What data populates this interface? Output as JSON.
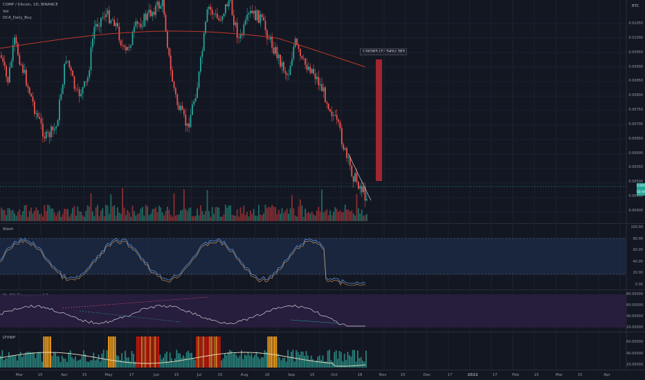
{
  "header": {
    "symbol_line": "COMP / Bitcoin, 1D, BINANCE",
    "volume_label": "Vol",
    "indicator_label": "DCA_Daily_Buy",
    "currency": "BTC"
  },
  "main_price_axis": {
    "ticks": [
      "0.01050",
      "0.01000",
      "0.00950",
      "0.00900",
      "0.00850",
      "0.00800",
      "0.00750",
      "0.00700",
      "0.00650",
      "0.00600",
      "0.00550",
      "0.00500",
      "0.00450",
      "0.00400"
    ],
    "last_price": "0.00528",
    "countdown": "02:49:20"
  },
  "measure_box": {
    "label": "0.00383 (72.54%) 383",
    "color": "#b22833"
  },
  "stoch": {
    "title": "Stoch",
    "ticks": [
      "100.00",
      "80.00",
      "60.00",
      "40.00",
      "20.00",
      "0.00"
    ],
    "upper_band": 80,
    "lower_band": 20
  },
  "rsi": {
    "title": "My RSI Divergence v4.3",
    "ticks": [
      "80.00000",
      "60.00000",
      "40.00000",
      "20.00000"
    ]
  },
  "vwap_osc": {
    "title": "LTVWP",
    "ticks": [
      "60.00000",
      "40.00000",
      "20.00000"
    ]
  },
  "time_axis": [
    "Mar",
    "15",
    "Apr",
    "15",
    "May",
    "17",
    "Jun",
    "15",
    "Jul",
    "15",
    "Aug",
    "16",
    "Sep",
    "15",
    "Oct",
    "18",
    "Nov",
    "15",
    "Dec",
    "17",
    "2022",
    "17",
    "Feb",
    "15",
    "Mar",
    "15",
    "Apr"
  ],
  "colors": {
    "up": "#26a69a",
    "down": "#ef5350",
    "ma": "#c0392b",
    "stoch_k": "#5b8fd8",
    "stoch_d": "#e0a46a",
    "rsi_line": "#d1d4dc",
    "osc_orange": "#f7a21b",
    "osc_red": "#c91a0a"
  }
}
